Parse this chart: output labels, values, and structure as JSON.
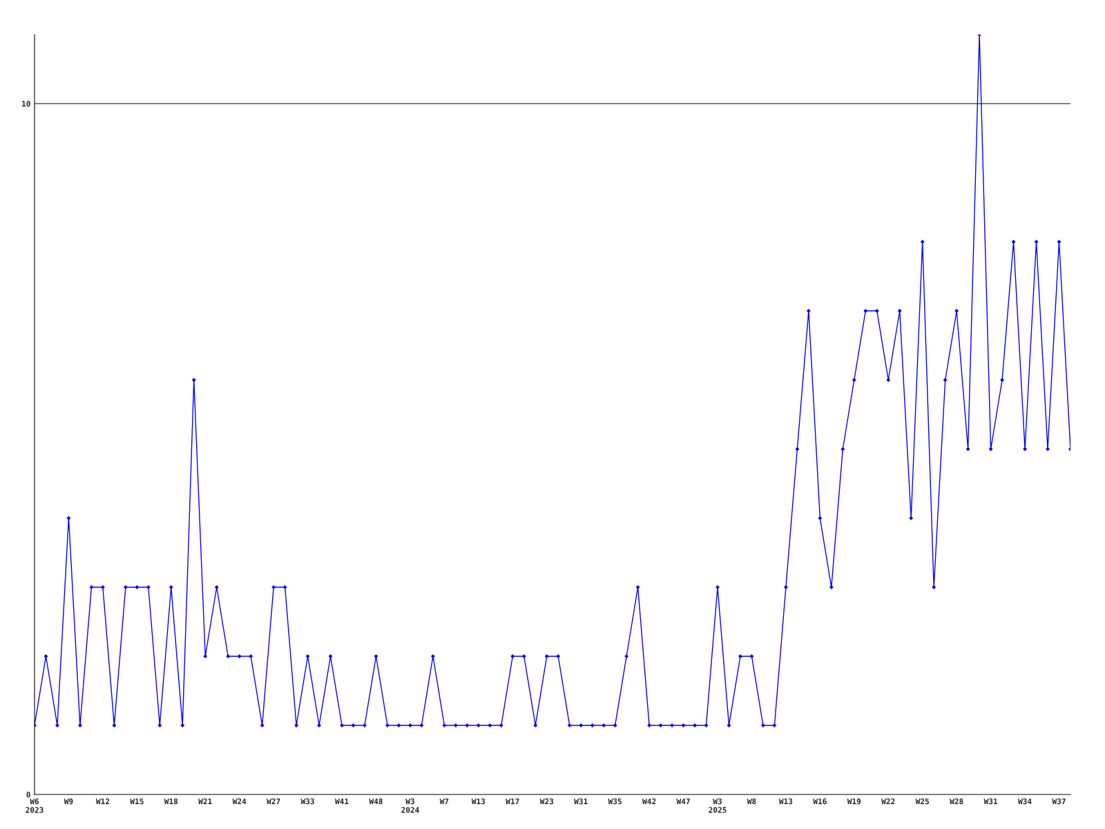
{
  "chart_data": {
    "type": "line",
    "categories": [
      "W6\n2023",
      null,
      null,
      "W9",
      null,
      null,
      "W12",
      null,
      null,
      "W15",
      null,
      null,
      "W18",
      null,
      null,
      "W21",
      null,
      null,
      "W24",
      null,
      null,
      "W27",
      null,
      null,
      "W33",
      null,
      null,
      "W41",
      null,
      null,
      "W48",
      null,
      null,
      "W3\n2024",
      null,
      null,
      "W7",
      null,
      null,
      "W13",
      null,
      null,
      "W17",
      null,
      null,
      "W23",
      null,
      null,
      "W31",
      null,
      null,
      "W35",
      null,
      null,
      "W42",
      null,
      null,
      "W47",
      null,
      null,
      "W3\n2025",
      null,
      null,
      "W8",
      null,
      null,
      "W13",
      null,
      null,
      "W16",
      null,
      null,
      "W19",
      null,
      null,
      "W22",
      null,
      null,
      "W25",
      null,
      null,
      "W28",
      null,
      null,
      "W31",
      null,
      null,
      "W34",
      null,
      null,
      "W37",
      null
    ],
    "series": [
      {
        "color": "#0000ff",
        "values": [
          1,
          2,
          1,
          4,
          1,
          3,
          3,
          1,
          3,
          3,
          3,
          1,
          3,
          1,
          6,
          2,
          3,
          2,
          2,
          2,
          1,
          3,
          3,
          1,
          2,
          1,
          2,
          1,
          1,
          1,
          2,
          1,
          1,
          1,
          1,
          2,
          1,
          1,
          1,
          1,
          1,
          1,
          2,
          2,
          1,
          2,
          2,
          1,
          1,
          1,
          1,
          1,
          2,
          3,
          1,
          1,
          1,
          1,
          1,
          1,
          3,
          1,
          2,
          2,
          1,
          1,
          3,
          5,
          7,
          4,
          3,
          5,
          6,
          7,
          7,
          6,
          7,
          4,
          8,
          3,
          6,
          7,
          5,
          11,
          5,
          6,
          8,
          5,
          8,
          5,
          8,
          5
        ]
      }
    ],
    "ylim": [
      0,
      11
    ],
    "yticks": [
      0,
      10
    ],
    "grid": "y",
    "marker": "diamond",
    "line_style": "solid",
    "legend": false
  }
}
